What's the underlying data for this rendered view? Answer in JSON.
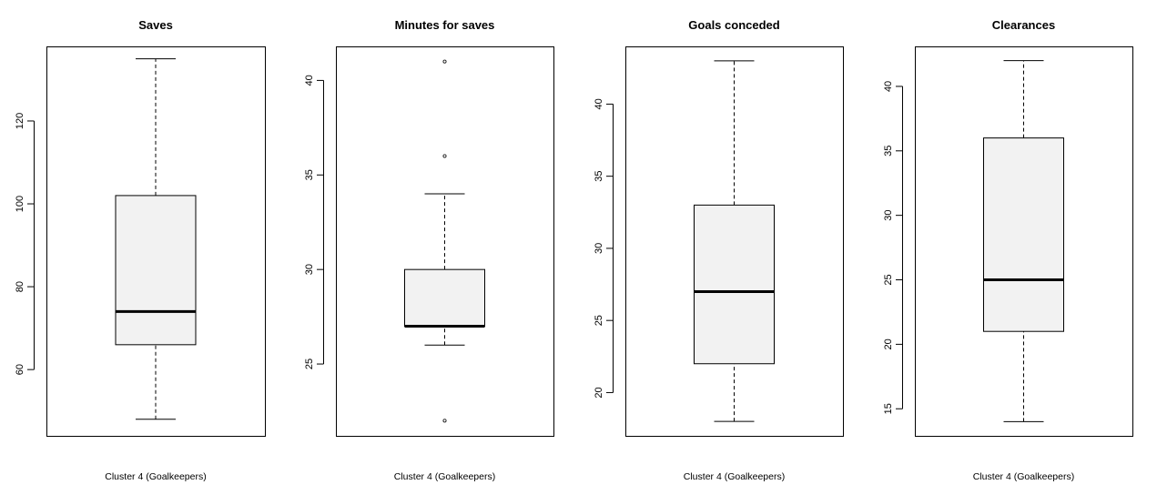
{
  "chart_data": [
    {
      "type": "boxplot",
      "title": "Saves",
      "xlabel": "Cluster 4 (Goalkeepers)",
      "ylabel": "",
      "ylim": [
        44,
        138
      ],
      "yticks": [
        60,
        80,
        100,
        120
      ],
      "ytick_labels": [
        "60",
        "80",
        "100",
        "120"
      ],
      "box": {
        "whisker_low": 48,
        "q1": 66,
        "median": 74,
        "q3": 102,
        "whisker_high": 135
      },
      "outliers": []
    },
    {
      "type": "boxplot",
      "title": "Minutes for saves",
      "xlabel": "Cluster 4 (Goalkeepers)",
      "ylabel": "",
      "ylim": [
        21.2,
        41.8
      ],
      "yticks": [
        25,
        30,
        35,
        40
      ],
      "ytick_labels": [
        "25",
        "30",
        "35",
        "40"
      ],
      "box": {
        "whisker_low": 26,
        "q1": 27,
        "median": 27,
        "q3": 30,
        "whisker_high": 34
      },
      "outliers": [
        22,
        36,
        41
      ]
    },
    {
      "type": "boxplot",
      "title": "Goals conceded",
      "xlabel": "Cluster 4 (Goalkeepers)",
      "ylabel": "",
      "ylim": [
        17,
        44
      ],
      "yticks": [
        20,
        25,
        30,
        35,
        40
      ],
      "ytick_labels": [
        "20",
        "25",
        "30",
        "35",
        "40"
      ],
      "box": {
        "whisker_low": 18,
        "q1": 22,
        "median": 27,
        "q3": 33,
        "whisker_high": 43
      },
      "outliers": []
    },
    {
      "type": "boxplot",
      "title": "Clearances",
      "xlabel": "Cluster 4 (Goalkeepers)",
      "ylabel": "",
      "ylim": [
        12.9,
        43.1
      ],
      "yticks": [
        15,
        20,
        25,
        30,
        35,
        40
      ],
      "ytick_labels": [
        "15",
        "20",
        "25",
        "30",
        "35",
        "40"
      ],
      "box": {
        "whisker_low": 14,
        "q1": 21,
        "median": 25,
        "q3": 36,
        "whisker_high": 42
      },
      "outliers": []
    }
  ],
  "colors": {
    "box_fill": "#f2f2f2",
    "stroke": "#000000",
    "background": "#ffffff"
  }
}
